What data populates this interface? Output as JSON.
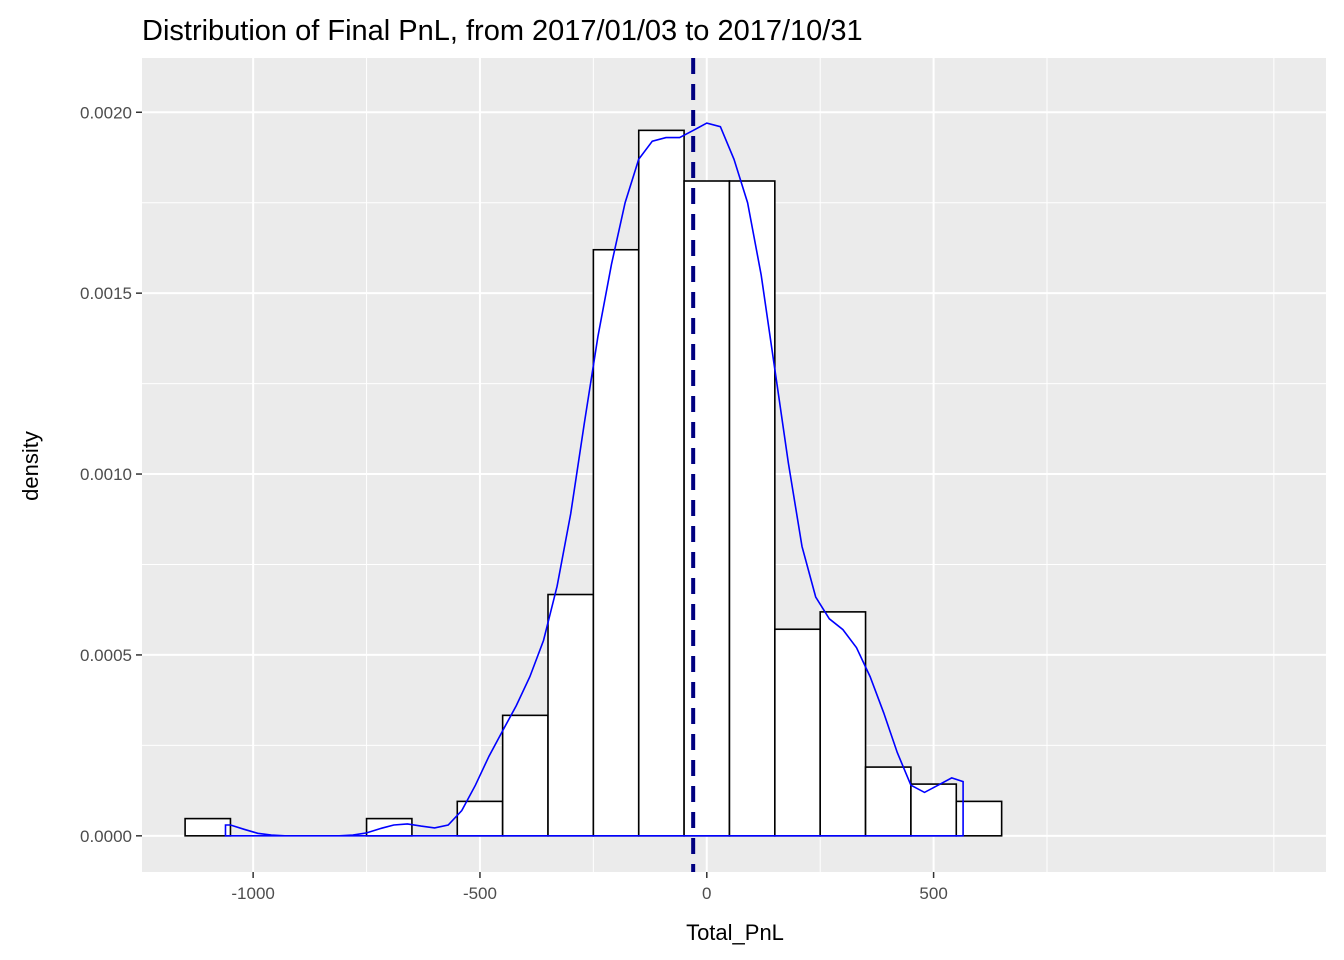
{
  "chart_data": {
    "type": "histogram",
    "title": "Distribution of Final PnL, from 2017/01/03 to 2017/10/31",
    "xlabel": "Total_PnL",
    "ylabel": "density",
    "xlim": [
      -1245,
      1365
    ],
    "ylim": [
      -0.0001,
      0.00215
    ],
    "x_ticks": [
      -1000,
      -500,
      0,
      500
    ],
    "x_tick_labels": [
      "-1000",
      "-500",
      "0",
      "500"
    ],
    "y_ticks": [
      0,
      0.0005,
      0.001,
      0.0015,
      0.002
    ],
    "y_tick_labels": [
      "0.0000",
      "0.0005",
      "0.0010",
      "0.0015",
      "0.0020"
    ],
    "grid": true,
    "bins": [
      {
        "x0": -1150,
        "x1": -1050,
        "density": 4.76e-05
      },
      {
        "x0": -1050,
        "x1": -950,
        "density": 0
      },
      {
        "x0": -950,
        "x1": -850,
        "density": 0
      },
      {
        "x0": -850,
        "x1": -750,
        "density": 0
      },
      {
        "x0": -750,
        "x1": -650,
        "density": 4.76e-05
      },
      {
        "x0": -650,
        "x1": -550,
        "density": 0
      },
      {
        "x0": -550,
        "x1": -450,
        "density": 9.52e-05
      },
      {
        "x0": -450,
        "x1": -350,
        "density": 0.000333
      },
      {
        "x0": -350,
        "x1": -250,
        "density": 0.000667
      },
      {
        "x0": -250,
        "x1": -150,
        "density": 0.00162
      },
      {
        "x0": -150,
        "x1": -50,
        "density": 0.00195
      },
      {
        "x0": -50,
        "x1": 50,
        "density": 0.00181
      },
      {
        "x0": 50,
        "x1": 150,
        "density": 0.00181
      },
      {
        "x0": 150,
        "x1": 250,
        "density": 0.000571
      },
      {
        "x0": 250,
        "x1": 350,
        "density": 0.000619
      },
      {
        "x0": 350,
        "x1": 450,
        "density": 0.00019
      },
      {
        "x0": 450,
        "x1": 550,
        "density": 0.000143
      },
      {
        "x0": 550,
        "x1": 650,
        "density": 9.52e-05
      }
    ],
    "density_curve": {
      "color": "#0000ff",
      "x": [
        -1061,
        -1050,
        -1020,
        -990,
        -960,
        -930,
        -900,
        -870,
        -840,
        -810,
        -780,
        -750,
        -720,
        -690,
        -660,
        -630,
        -600,
        -570,
        -540,
        -510,
        -480,
        -450,
        -420,
        -390,
        -360,
        -330,
        -300,
        -270,
        -240,
        -210,
        -180,
        -150,
        -120,
        -90,
        -60,
        -30,
        0,
        30,
        60,
        90,
        120,
        150,
        180,
        210,
        240,
        270,
        300,
        330,
        360,
        390,
        420,
        450,
        480,
        510,
        540,
        565
      ],
      "y": [
        3e-05,
        3e-05,
        1.8e-05,
        7e-06,
        2e-06,
        0,
        0,
        0,
        0,
        0,
        2e-06,
        8e-06,
        2e-05,
        3e-05,
        3.3e-05,
        2.7e-05,
        2.2e-05,
        3e-05,
        7e-05,
        0.00014,
        0.00022,
        0.00029,
        0.00036,
        0.00044,
        0.00054,
        0.00069,
        0.00089,
        0.00114,
        0.00138,
        0.00158,
        0.00175,
        0.00187,
        0.00192,
        0.00193,
        0.00193,
        0.00195,
        0.00197,
        0.00196,
        0.00187,
        0.00175,
        0.00155,
        0.00129,
        0.00103,
        0.0008,
        0.00066,
        0.0006,
        0.00057,
        0.00052,
        0.00044,
        0.00034,
        0.00023,
        0.00014,
        0.00012,
        0.00014,
        0.00016,
        0.00015
      ]
    },
    "mean_line": {
      "x": -30,
      "color": "#000080",
      "style": "dashed"
    },
    "colors": {
      "panel": "#ebebeb",
      "grid_major": "#ffffff",
      "bar_fill": "#ffffff",
      "bar_stroke": "#000000"
    }
  }
}
